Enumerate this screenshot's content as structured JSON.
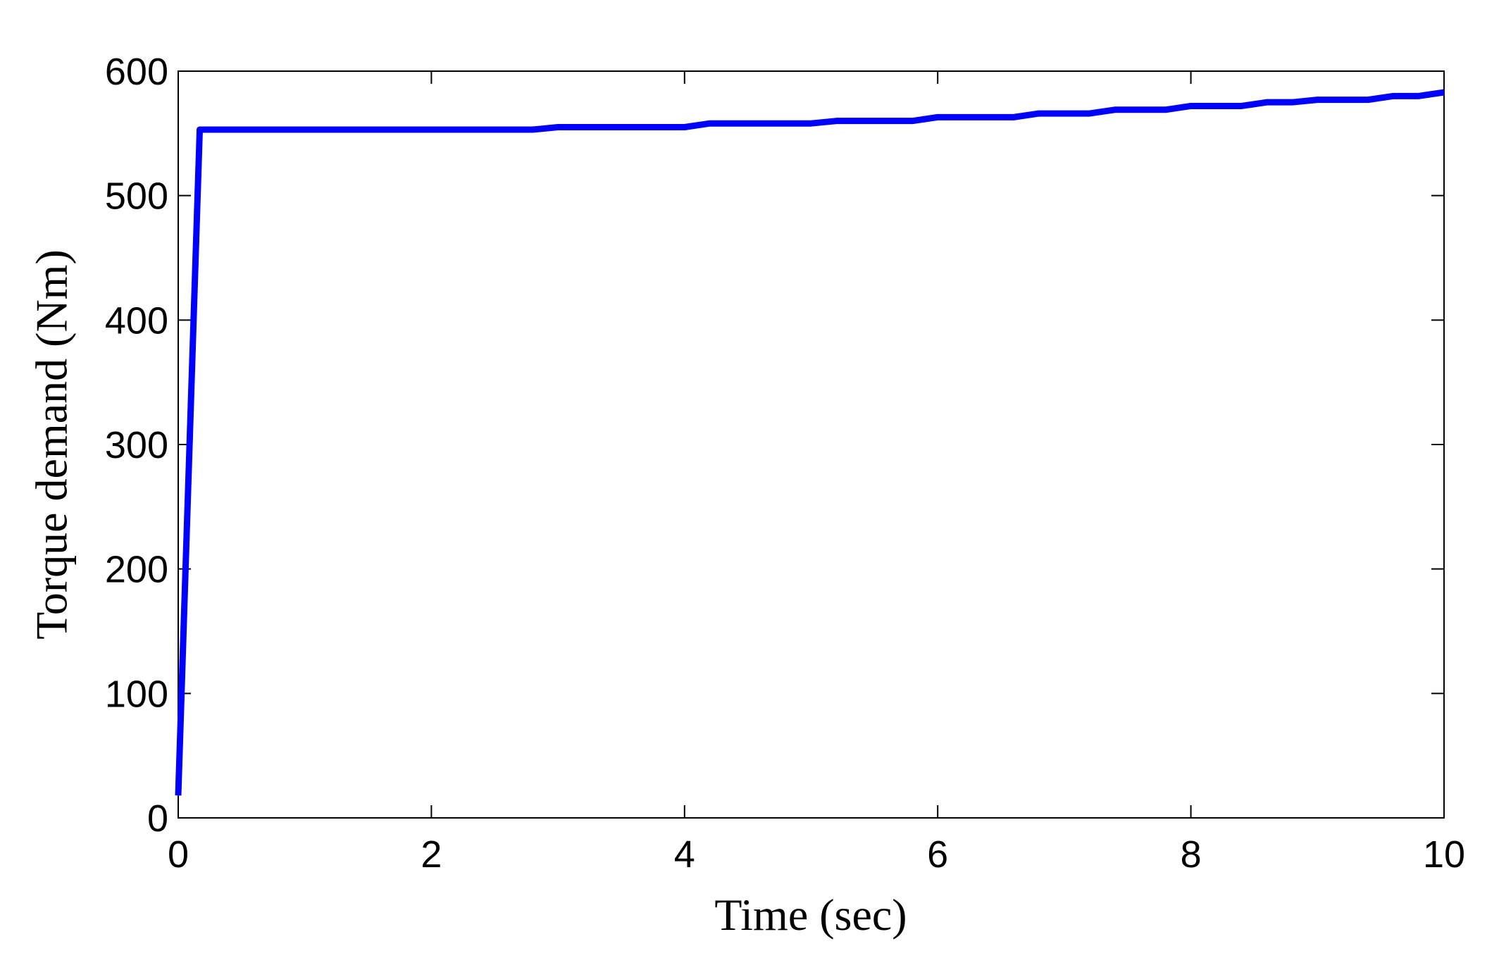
{
  "chart_data": {
    "type": "line",
    "x_label": "Time (sec)",
    "y_label": "Torque demand (Nm)",
    "x": [
      0,
      0.17,
      2.8,
      3.0,
      4.0,
      4.2,
      5.0,
      5.2,
      5.8,
      6.0,
      6.6,
      6.8,
      7.2,
      7.4,
      7.8,
      8.0,
      8.4,
      8.6,
      8.8,
      9.0,
      9.4,
      9.6,
      9.8,
      10
    ],
    "series": [
      {
        "name": "Torque demand",
        "color": "#0000ff",
        "values": [
          18,
          553,
          553,
          555,
          555,
          558,
          558,
          560,
          560,
          563,
          563,
          566,
          566,
          569,
          569,
          572,
          572,
          575,
          575,
          577,
          577,
          580,
          580,
          583
        ]
      }
    ],
    "xlim": [
      0,
      10
    ],
    "xticks": [
      0,
      2,
      4,
      6,
      8,
      10
    ],
    "ylim": [
      0,
      600
    ],
    "yticks": [
      0,
      100,
      200,
      300,
      400,
      500,
      600
    ]
  }
}
